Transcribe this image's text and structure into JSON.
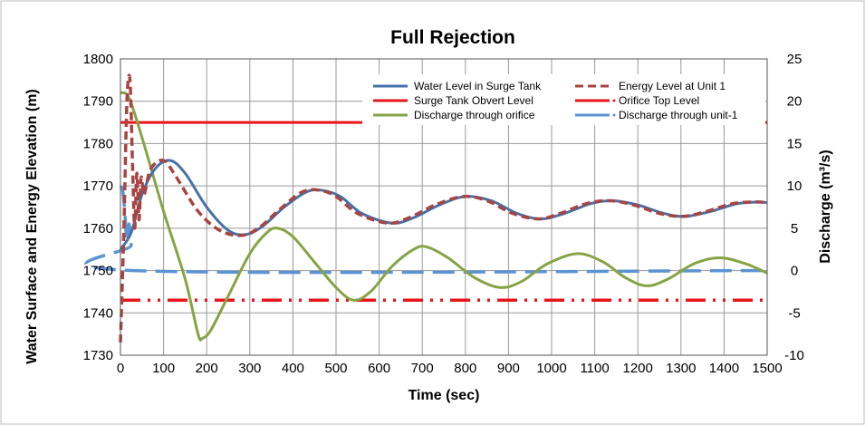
{
  "chart_data": {
    "type": "line",
    "title": "Full Rejection",
    "xlabel": "Time (sec)",
    "ylabel": "Water Surface  and Energy Elevation (m)",
    "y2label": "Discharge (m³/s)",
    "xlim": [
      0,
      1500
    ],
    "ylim": [
      1730,
      1800
    ],
    "y2lim": [
      -10,
      25
    ],
    "xticks": [
      0,
      100,
      200,
      300,
      400,
      500,
      600,
      700,
      800,
      900,
      1000,
      1100,
      1200,
      1300,
      1400,
      1500
    ],
    "yticks": [
      1730,
      1740,
      1750,
      1760,
      1770,
      1780,
      1790,
      1800
    ],
    "y2ticks": [
      -10,
      -5,
      0,
      5,
      10,
      15,
      20,
      25
    ],
    "grid": true,
    "legend_position": "top-right",
    "series": [
      {
        "name": "Water Level in Surge Tank",
        "axis": "left",
        "color": "#4472a8",
        "style": "solid",
        "x": [
          0,
          25,
          50,
          80,
          115,
          150,
          200,
          250,
          290,
          330,
          380,
          430,
          465,
          510,
          560,
          630,
          680,
          740,
          800,
          860,
          920,
          975,
          1030,
          1090,
          1140,
          1200,
          1260,
          1310,
          1370,
          1430,
          1480,
          1500
        ],
        "y": [
          1755,
          1759,
          1768,
          1774,
          1776,
          1773,
          1765,
          1759.5,
          1758.5,
          1760.5,
          1765,
          1768.5,
          1769,
          1767.5,
          1763.5,
          1761.2,
          1762.5,
          1765.5,
          1767.5,
          1766.5,
          1763.5,
          1762.2,
          1763.5,
          1765.8,
          1766.5,
          1765.5,
          1763.5,
          1762.8,
          1764,
          1765.8,
          1766.2,
          1766
        ]
      },
      {
        "name": "Energy Level at Unit 1",
        "axis": "left",
        "color": "#a94442",
        "style": "dashed",
        "x": [
          0,
          8,
          15,
          22,
          28,
          33,
          38,
          43,
          48,
          55,
          70,
          100,
          130,
          180,
          230,
          280,
          320,
          370,
          420,
          460,
          500,
          550,
          620,
          670,
          730,
          795,
          850,
          910,
          970,
          1020,
          1080,
          1135,
          1190,
          1250,
          1305,
          1360,
          1420,
          1475,
          1500
        ],
        "y": [
          1733,
          1760,
          1790,
          1795,
          1775,
          1760,
          1773,
          1762,
          1772,
          1768,
          1774,
          1776,
          1772,
          1764,
          1759.5,
          1758.3,
          1760,
          1764.5,
          1768.5,
          1769,
          1767.5,
          1763.5,
          1761.2,
          1762.5,
          1765.5,
          1767.5,
          1766.5,
          1763.5,
          1762.2,
          1763.5,
          1765.8,
          1766.5,
          1765.5,
          1763.5,
          1762.8,
          1764,
          1765.8,
          1766.2,
          1766
        ]
      },
      {
        "name": "Surge Tank  Obvert Level",
        "axis": "left",
        "color": "#e8161b",
        "style": "solid",
        "x": [
          0,
          1500
        ],
        "y": [
          1785,
          1785
        ]
      },
      {
        "name": "Orifice Top Level",
        "axis": "left",
        "color": "#e8161b",
        "style": "dash-dot-dot",
        "x": [
          0,
          1500
        ],
        "y": [
          1743,
          1743
        ]
      },
      {
        "name": "Discharge through orifice",
        "axis": "right",
        "color": "#86a444",
        "style": "solid",
        "x": [
          0,
          15,
          30,
          60,
          100,
          150,
          180,
          190,
          210,
          250,
          300,
          340,
          365,
          400,
          450,
          500,
          540,
          580,
          630,
          680,
          710,
          760,
          820,
          880,
          930,
          990,
          1060,
          1120,
          1170,
          1220,
          1270,
          1330,
          1390,
          1450,
          1500
        ],
        "y": [
          21,
          20.8,
          19,
          14,
          7,
          -1,
          -7.5,
          -8,
          -7,
          -3,
          2,
          4.5,
          5,
          4,
          1,
          -2,
          -3.5,
          -2.5,
          0.5,
          2.5,
          2.8,
          1.5,
          -0.8,
          -2,
          -1.3,
          0.8,
          2,
          1,
          -0.8,
          -1.8,
          -1,
          0.8,
          1.5,
          0.8,
          -0.3
        ]
      },
      {
        "name": "Discharge through unit-1",
        "axis": "right",
        "color": "#5b93d3",
        "style": "long-dash",
        "x": [
          0,
          5,
          10,
          15,
          20,
          25,
          30,
          1500
        ],
        "y": [
          10,
          9.5,
          7,
          3.5,
          5.5,
          3,
          0,
          0
        ]
      }
    ]
  }
}
